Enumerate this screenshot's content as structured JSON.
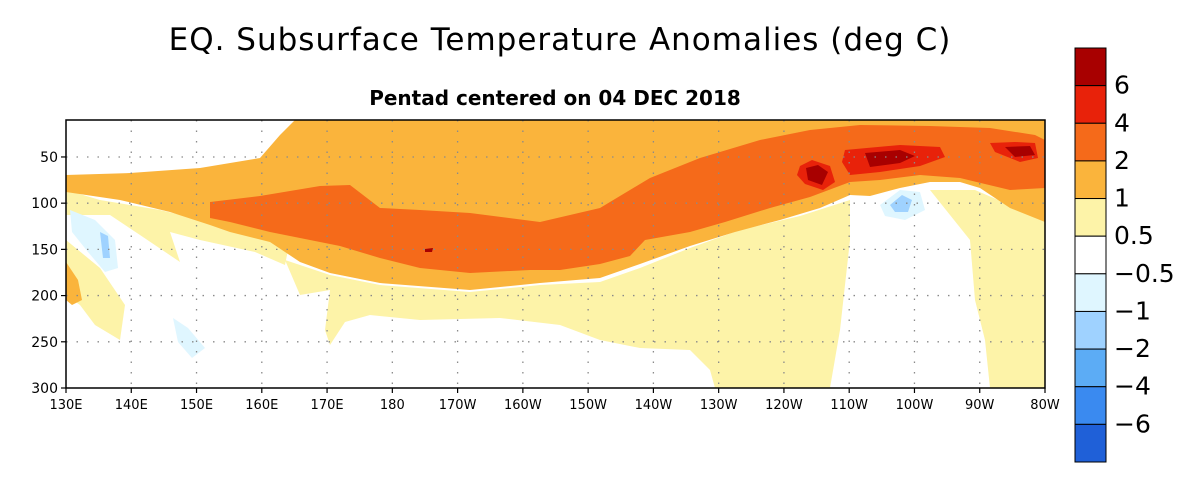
{
  "title": "EQ. Subsurface Temperature Anomalies (deg C)",
  "subtitle": "Pentad centered on 04 DEC 2018",
  "chart_data": {
    "type": "heatmap",
    "xlabel": "",
    "ylabel": "",
    "x_ticks": [
      "130E",
      "140E",
      "150E",
      "160E",
      "170E",
      "180",
      "170W",
      "160W",
      "150W",
      "140W",
      "130W",
      "120W",
      "110W",
      "100W",
      "90W",
      "80W"
    ],
    "x_range_deg_east": [
      130,
      280
    ],
    "y_ticks": [
      50,
      100,
      150,
      200,
      250,
      300
    ],
    "y_range": [
      10,
      300
    ],
    "y_inverted": true,
    "grid": true,
    "colorbar": {
      "labels": [
        "6",
        "4",
        "2",
        "1",
        "0.5",
        "−0.5",
        "−1",
        "−2",
        "−4",
        "−6"
      ],
      "colors": [
        "#a80000",
        "#e8220a",
        "#f56a1a",
        "#fab43c",
        "#fdf3a8",
        "#ffffff",
        "#dff6ff",
        "#9fd2ff",
        "#5cacf5",
        "#3a8af0",
        "#1f60d8"
      ]
    },
    "features": [
      {
        "level": 1,
        "region": "warm layer spanning the basin from about 150E eastward, shoaling from ~190 m in the central Pacific to the surface near 80W"
      },
      {
        "level": 2,
        "region": "core from ~155E to ~85W, roughly 100-170 m near 170W and 30-80 m near 100W"
      },
      {
        "level": 4,
        "region": "patches near 115W, 108W-100W and 90W-80W at 30-80 m"
      },
      {
        "level": -1,
        "region": "small cool pockets near 135E (100-170 m), 150E (230-260 m) and 100W (80-110 m)"
      }
    ]
  }
}
